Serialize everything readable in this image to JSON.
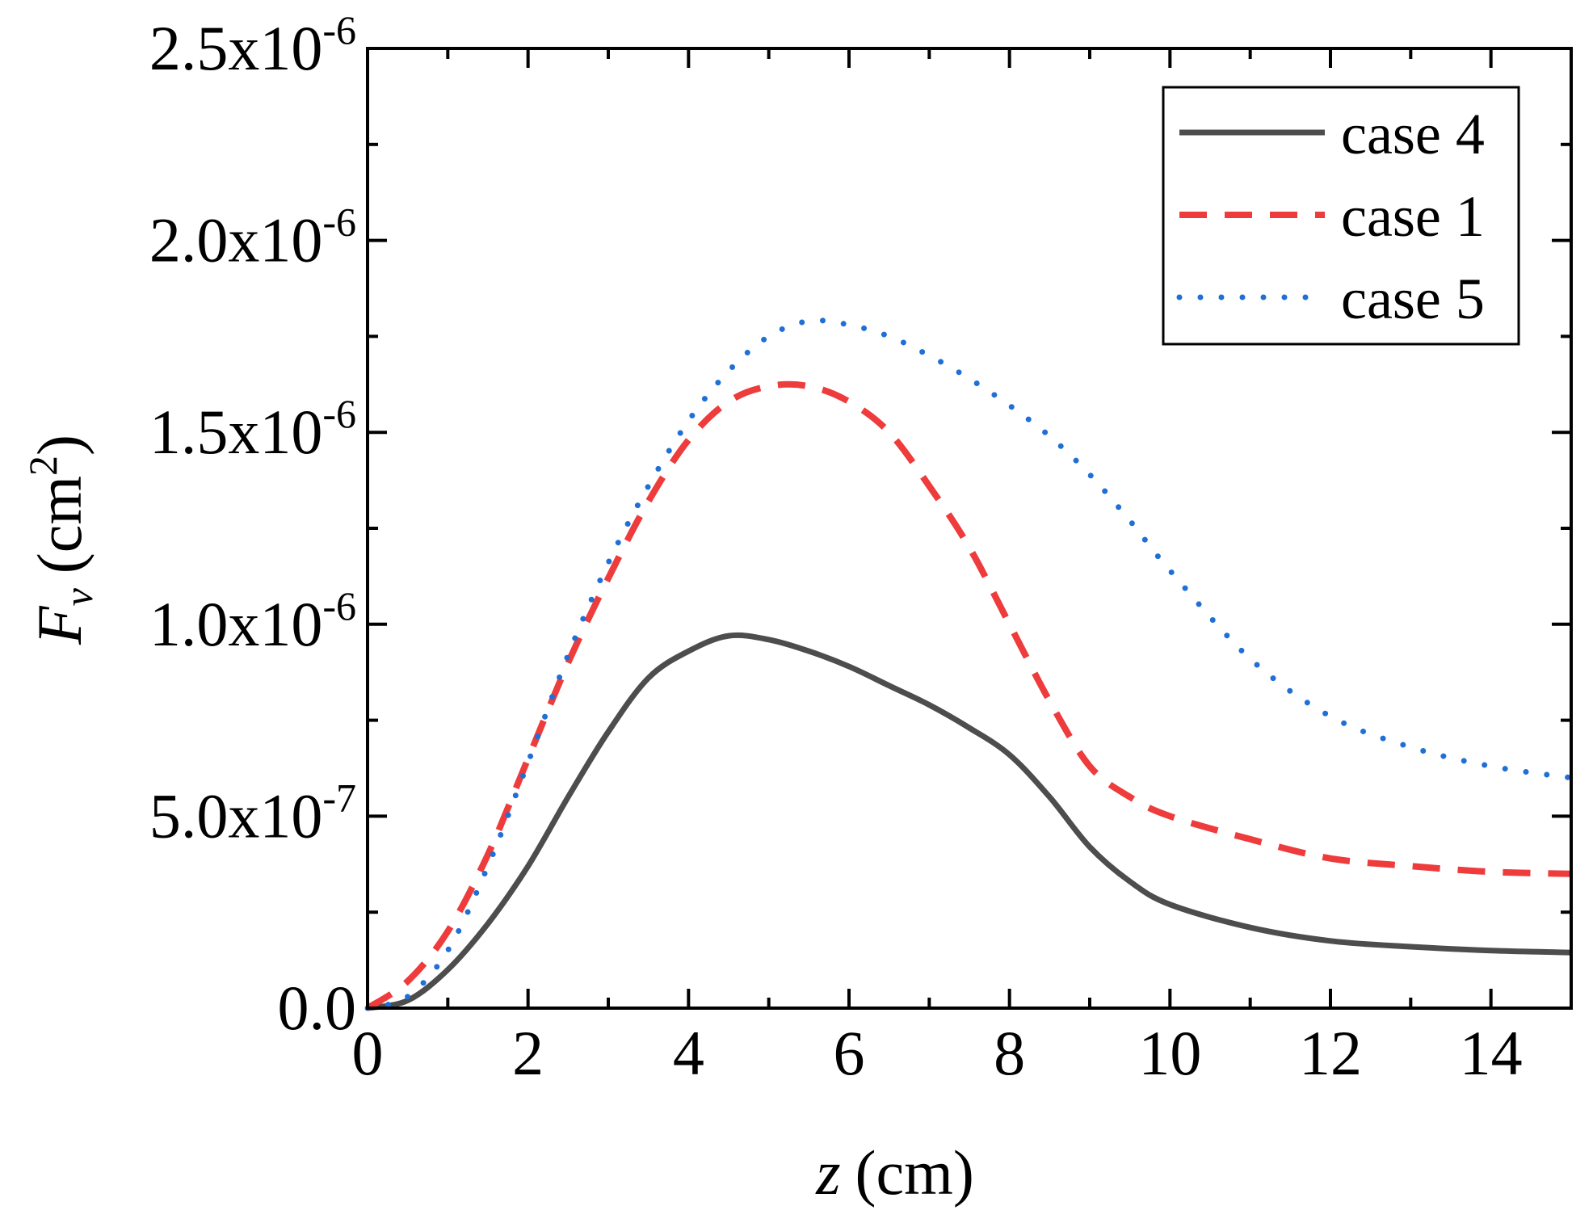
{
  "chart_data": {
    "type": "line",
    "title": "",
    "xlabel_var": "z",
    "xlabel_unit": "(cm)",
    "ylabel_var": "F",
    "ylabel_sub": "v",
    "ylabel_unit_open": "(cm",
    "ylabel_unit_sup": "2",
    "ylabel_unit_close": ")",
    "xlim": [
      0,
      15
    ],
    "ylim": [
      0,
      2.5e-06
    ],
    "x_ticks": [
      0,
      2,
      4,
      6,
      8,
      10,
      12,
      14
    ],
    "x_tick_labels": [
      "0",
      "2",
      "4",
      "6",
      "8",
      "10",
      "12",
      "14"
    ],
    "y_ticks": [
      0,
      5e-07,
      1e-06,
      1.5e-06,
      2e-06,
      2.5e-06
    ],
    "y_tick_labels": [
      {
        "mantissa": "0.0",
        "exp": ""
      },
      {
        "mantissa": "5.0x10",
        "exp": "-7"
      },
      {
        "mantissa": "1.0x10",
        "exp": "-6"
      },
      {
        "mantissa": "1.5x10",
        "exp": "-6"
      },
      {
        "mantissa": "2.0x10",
        "exp": "-6"
      },
      {
        "mantissa": "2.5x10",
        "exp": "-6"
      }
    ],
    "legend_position": "top-right",
    "series": [
      {
        "name": "case 4",
        "style": "solid",
        "color": "#4d4d4d",
        "x": [
          0,
          0.5,
          1,
          1.5,
          2,
          2.5,
          3,
          3.5,
          4,
          4.5,
          5,
          5.5,
          6,
          6.5,
          7,
          7.5,
          8,
          8.5,
          9,
          9.5,
          10,
          11,
          12,
          13,
          14,
          15
        ],
        "y": [
          0,
          2e-08,
          1e-07,
          2.2e-07,
          3.7e-07,
          5.5e-07,
          7.2e-07,
          8.6e-07,
          9.3e-07,
          9.7e-07,
          9.6e-07,
          9.3e-07,
          8.9e-07,
          8.4e-07,
          7.9e-07,
          7.3e-07,
          6.6e-07,
          5.5e-07,
          4.2e-07,
          3.3e-07,
          2.7e-07,
          2.1e-07,
          1.75e-07,
          1.6e-07,
          1.5e-07,
          1.45e-07
        ]
      },
      {
        "name": "case 1",
        "style": "dashed",
        "color": "#ee3b3b",
        "x": [
          0,
          0.5,
          1,
          1.5,
          2,
          2.5,
          3,
          3.5,
          4,
          4.5,
          5,
          5.5,
          6,
          6.5,
          7,
          7.5,
          8,
          8.5,
          9,
          9.5,
          10,
          11,
          12,
          13,
          14,
          15
        ],
        "y": [
          0,
          7e-08,
          2e-07,
          4e-07,
          6.5e-07,
          9e-07,
          1.12e-06,
          1.32e-06,
          1.48e-06,
          1.58e-06,
          1.62e-06,
          1.62e-06,
          1.58e-06,
          1.5e-06,
          1.36e-06,
          1.2e-06,
          1e-06,
          8e-07,
          6.3e-07,
          5.5e-07,
          5e-07,
          4.4e-07,
          3.9e-07,
          3.7e-07,
          3.55e-07,
          3.5e-07
        ]
      },
      {
        "name": "case 5",
        "style": "dotted",
        "color": "#1f6fd6",
        "x": [
          0,
          0.5,
          1,
          1.5,
          2,
          2.5,
          3,
          3.5,
          4,
          4.5,
          5,
          5.5,
          6,
          6.5,
          7,
          7.5,
          8,
          8.5,
          9,
          9.5,
          10,
          11,
          12,
          13,
          14,
          15
        ],
        "y": [
          0,
          3e-08,
          1.5e-07,
          3.7e-07,
          6.4e-07,
          9.2e-07,
          1.16e-06,
          1.36e-06,
          1.53e-06,
          1.66e-06,
          1.75e-06,
          1.79e-06,
          1.78e-06,
          1.75e-06,
          1.7e-06,
          1.64e-06,
          1.57e-06,
          1.49e-06,
          1.39e-06,
          1.27e-06,
          1.14e-06,
          9.1e-07,
          7.6e-07,
          6.8e-07,
          6.3e-07,
          6e-07
        ]
      }
    ]
  }
}
